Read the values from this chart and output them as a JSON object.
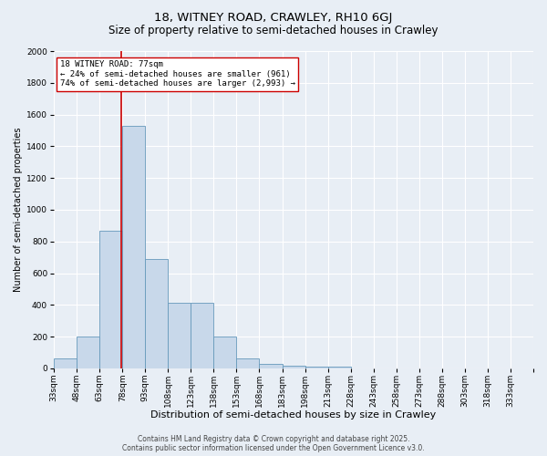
{
  "title1": "18, WITNEY ROAD, CRAWLEY, RH10 6GJ",
  "title2": "Size of property relative to semi-detached houses in Crawley",
  "xlabel": "Distribution of semi-detached houses by size in Crawley",
  "ylabel_text": "Number of semi-detached properties",
  "bin_labels": [
    "33sqm",
    "48sqm",
    "63sqm",
    "78sqm",
    "93sqm",
    "108sqm",
    "123sqm",
    "138sqm",
    "153sqm",
    "168sqm",
    "183sqm",
    "198sqm",
    "213sqm",
    "228sqm",
    "243sqm",
    "258sqm",
    "273sqm",
    "288sqm",
    "303sqm",
    "318sqm",
    "333sqm"
  ],
  "bin_edges": [
    33,
    48,
    63,
    78,
    93,
    108,
    123,
    138,
    153,
    168,
    183,
    198,
    213,
    228,
    243,
    258,
    273,
    288,
    303,
    318,
    333
  ],
  "bar_heights": [
    65,
    200,
    870,
    1530,
    690,
    415,
    415,
    200,
    60,
    30,
    15,
    10,
    10,
    0,
    0,
    0,
    0,
    0,
    0,
    0
  ],
  "bar_color": "#c8d8ea",
  "bar_edge_color": "#6699bb",
  "property_size": 77,
  "property_line_color": "#cc0000",
  "annotation_text": "18 WITNEY ROAD: 77sqm\n← 24% of semi-detached houses are smaller (961)\n74% of semi-detached houses are larger (2,993) →",
  "annotation_box_color": "#ffffff",
  "annotation_box_edge": "#cc0000",
  "ylim": [
    0,
    2000
  ],
  "yticks": [
    0,
    200,
    400,
    600,
    800,
    1000,
    1200,
    1400,
    1600,
    1800,
    2000
  ],
  "background_color": "#e8eef5",
  "grid_color": "#ffffff",
  "footer_text": "Contains HM Land Registry data © Crown copyright and database right 2025.\nContains public sector information licensed under the Open Government Licence v3.0.",
  "title1_fontsize": 9.5,
  "title2_fontsize": 8.5,
  "xlabel_fontsize": 8,
  "ylabel_fontsize": 7,
  "tick_fontsize": 6.5,
  "annotation_fontsize": 6.5,
  "footer_fontsize": 5.5
}
